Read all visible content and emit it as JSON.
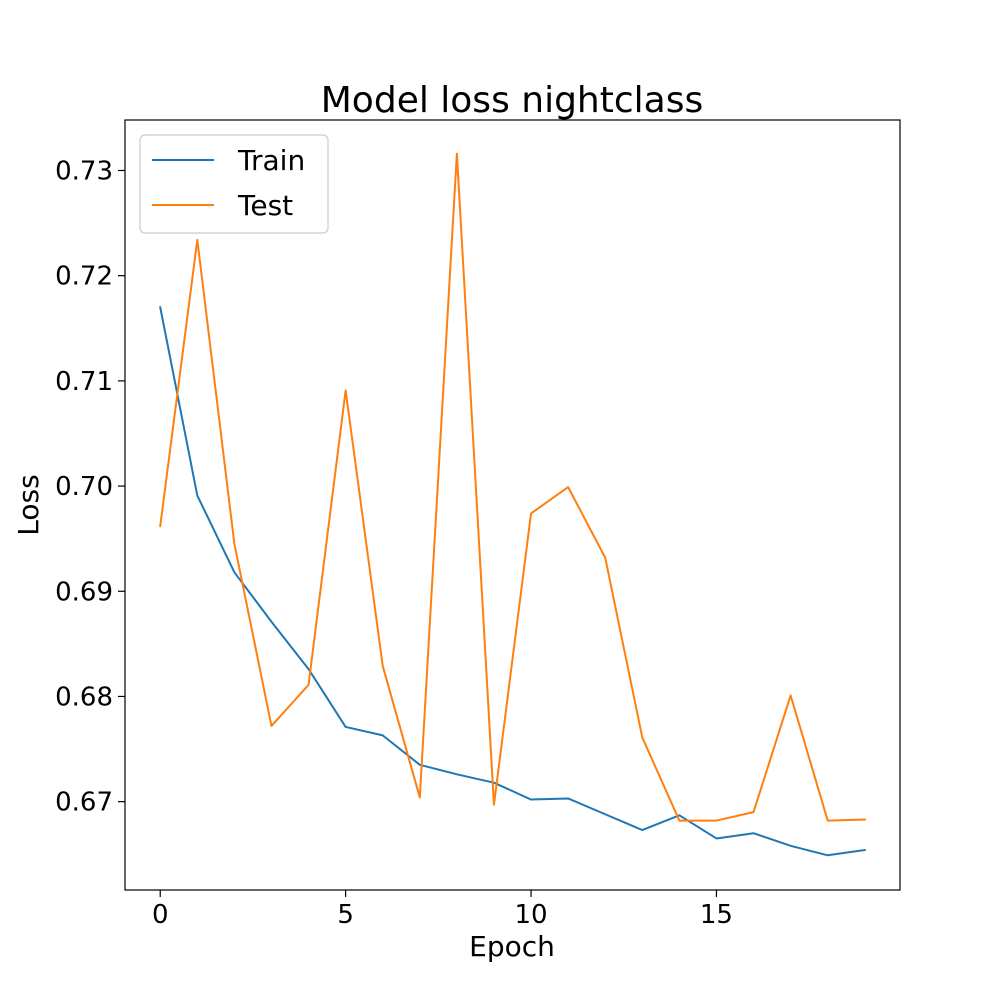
{
  "chart_data": {
    "type": "line",
    "title": "Model loss nightclass",
    "xlabel": "Epoch",
    "ylabel": "Loss",
    "x": [
      0,
      1,
      2,
      3,
      4,
      5,
      6,
      7,
      8,
      9,
      10,
      11,
      12,
      13,
      14,
      15,
      16,
      17,
      18,
      19
    ],
    "xlim": [
      -0.95,
      19.95
    ],
    "ylim": [
      0.6616,
      0.7348
    ],
    "xticks": [
      0,
      5,
      10,
      15
    ],
    "yticks": [
      0.67,
      0.68,
      0.69,
      0.7,
      0.71,
      0.72,
      0.73
    ],
    "grid": false,
    "legend_position": "top-left",
    "series": [
      {
        "name": "Train",
        "color": "#1f77b4",
        "values": [
          0.717,
          0.6991,
          0.6918,
          0.6871,
          0.6826,
          0.6771,
          0.6763,
          0.6735,
          0.6726,
          0.6718,
          0.6702,
          0.6703,
          0.6688,
          0.6673,
          0.6687,
          0.6665,
          0.667,
          0.6658,
          0.6649,
          0.6654
        ]
      },
      {
        "name": "Test",
        "color": "#ff7f0e",
        "values": [
          0.6962,
          0.7234,
          0.6945,
          0.6772,
          0.6811,
          0.7091,
          0.6829,
          0.6704,
          0.7316,
          0.6697,
          0.6974,
          0.6999,
          0.6932,
          0.6761,
          0.6682,
          0.6682,
          0.669,
          0.6801,
          0.6682,
          0.6683
        ]
      }
    ]
  }
}
